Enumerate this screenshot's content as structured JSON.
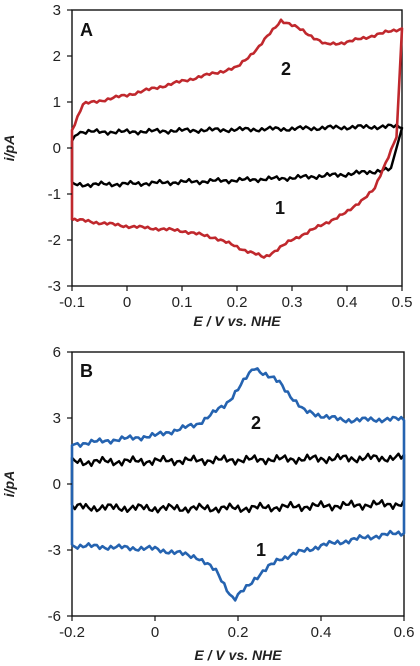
{
  "chart_data": [
    {
      "type": "line",
      "panel_label": "A",
      "xlabel": "E / V vs. NHE",
      "ylabel": "i/pA",
      "xlim": [
        -0.1,
        0.5
      ],
      "ylim": [
        -3,
        3
      ],
      "xticks": [
        "-0.1",
        "0",
        "0.1",
        "0.2",
        "0.3",
        "0.4",
        "0.5"
      ],
      "yticks": [
        "3",
        "2",
        "1",
        "0",
        "-1",
        "-2",
        "-3"
      ],
      "grid": false,
      "series": [
        {
          "name": "1",
          "color": "#000000",
          "upper": [
            [
              -0.1,
              0.15
            ],
            [
              -0.09,
              0.35
            ],
            [
              0.0,
              0.35
            ],
            [
              0.1,
              0.38
            ],
            [
              0.2,
              0.4
            ],
            [
              0.3,
              0.42
            ],
            [
              0.4,
              0.45
            ],
            [
              0.5,
              0.47
            ]
          ],
          "lower": [
            [
              -0.1,
              -0.8
            ],
            [
              0.0,
              -0.78
            ],
            [
              0.1,
              -0.74
            ],
            [
              0.2,
              -0.7
            ],
            [
              0.3,
              -0.65
            ],
            [
              0.4,
              -0.57
            ],
            [
              0.48,
              -0.47
            ]
          ]
        },
        {
          "name": "2",
          "color": "#c0282d",
          "upper": [
            [
              -0.1,
              0.4
            ],
            [
              -0.08,
              0.95
            ],
            [
              0.0,
              1.15
            ],
            [
              0.1,
              1.45
            ],
            [
              0.2,
              1.75
            ],
            [
              0.24,
              2.2
            ],
            [
              0.28,
              2.78
            ],
            [
              0.32,
              2.55
            ],
            [
              0.36,
              2.25
            ],
            [
              0.4,
              2.3
            ],
            [
              0.45,
              2.45
            ],
            [
              0.5,
              2.6
            ]
          ],
          "lower": [
            [
              -0.1,
              -1.55
            ],
            [
              0.0,
              -1.7
            ],
            [
              0.1,
              -1.8
            ],
            [
              0.16,
              -1.95
            ],
            [
              0.21,
              -2.2
            ],
            [
              0.25,
              -2.38
            ],
            [
              0.3,
              -2.0
            ],
            [
              0.35,
              -1.7
            ],
            [
              0.4,
              -1.4
            ],
            [
              0.45,
              -0.9
            ],
            [
              0.49,
              0.25
            ]
          ]
        }
      ]
    },
    {
      "type": "line",
      "panel_label": "B",
      "xlabel": "E / V vs. NHE",
      "ylabel": "i/pA",
      "xlim": [
        -0.2,
        0.6
      ],
      "ylim": [
        -6,
        6
      ],
      "xticks": [
        "-0.2",
        "0",
        "0.2",
        "0.4",
        "0.6"
      ],
      "yticks": [
        "6",
        "3",
        "0",
        "-3",
        "-6"
      ],
      "grid": false,
      "series": [
        {
          "name": "1",
          "color": "#000000",
          "upper": [
            [
              -0.2,
              1.0
            ],
            [
              0.0,
              1.05
            ],
            [
              0.2,
              1.1
            ],
            [
              0.4,
              1.15
            ],
            [
              0.6,
              1.2
            ]
          ],
          "lower": [
            [
              -0.2,
              -1.05
            ],
            [
              0.0,
              -1.1
            ],
            [
              0.2,
              -1.1
            ],
            [
              0.4,
              -1.0
            ],
            [
              0.6,
              -0.9
            ]
          ]
        },
        {
          "name": "2",
          "color": "#2563b0",
          "upper": [
            [
              -0.2,
              1.8
            ],
            [
              0.0,
              2.2
            ],
            [
              0.1,
              2.7
            ],
            [
              0.17,
              3.6
            ],
            [
              0.24,
              5.3
            ],
            [
              0.3,
              4.6
            ],
            [
              0.36,
              3.3
            ],
            [
              0.45,
              2.9
            ],
            [
              0.6,
              2.95
            ]
          ],
          "lower": [
            [
              -0.2,
              -2.8
            ],
            [
              0.0,
              -2.95
            ],
            [
              0.1,
              -3.3
            ],
            [
              0.15,
              -4.0
            ],
            [
              0.19,
              -5.3
            ],
            [
              0.24,
              -4.3
            ],
            [
              0.3,
              -3.4
            ],
            [
              0.4,
              -2.8
            ],
            [
              0.5,
              -2.45
            ],
            [
              0.6,
              -2.2
            ]
          ]
        }
      ]
    }
  ]
}
